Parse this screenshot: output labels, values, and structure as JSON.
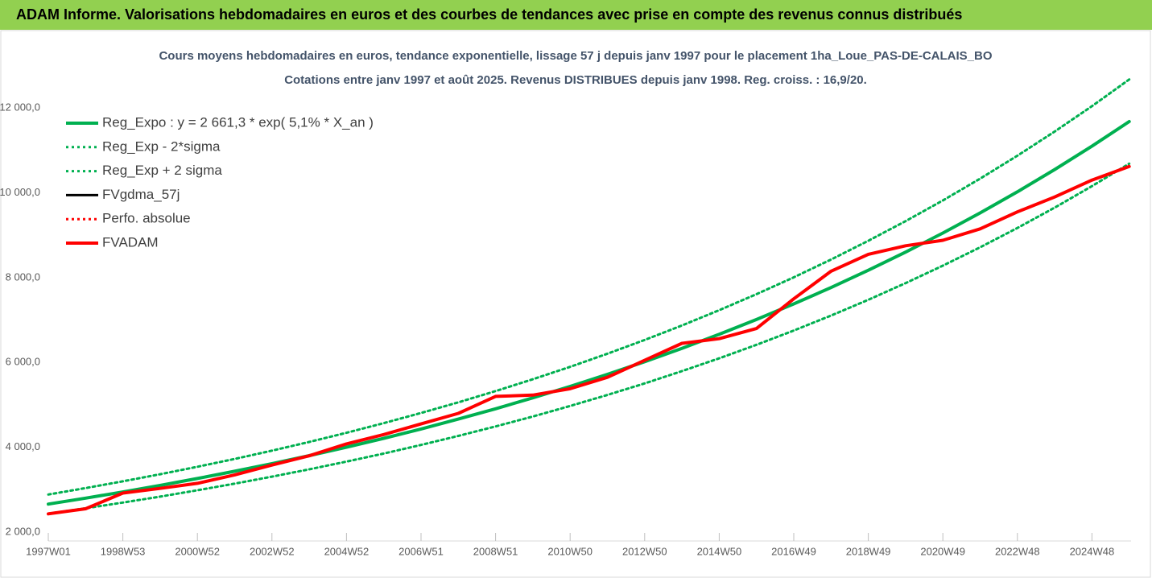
{
  "chart_data": {
    "type": "line",
    "header": "ADAM Informe. Valorisations hebdomadaires en euros et des courbes de tendances avec prise en compte des revenus connus distribués",
    "title": "Cours moyens hebdomadaires en euros, tendance exponentielle, lissage 57 j depuis janv 1997 pour le placement 1ha_Loue_PAS-DE-CALAIS_BO",
    "subtitle": "Cotations entre janv 1997 et août 2025. Revenus DISTRIBUES depuis janv 1998. Reg. croiss. : 16,9/20.",
    "categories": [
      "1997W01",
      null,
      "1998W53",
      null,
      "2000W52",
      null,
      "2002W52",
      null,
      "2004W52",
      null,
      "2006W51",
      null,
      "2008W51",
      null,
      "2010W50",
      null,
      "2012W50",
      null,
      "2014W50",
      null,
      "2016W49",
      null,
      "2018W49",
      null,
      "2020W49",
      null,
      "2022W48",
      null,
      "2024W48",
      null
    ],
    "ylim": [
      2000,
      12400
    ],
    "yticks": [
      {
        "value": 2000,
        "label": "2 000,0"
      },
      {
        "value": 4000,
        "label": "4 000,0"
      },
      {
        "value": 6000,
        "label": "6 000,0"
      },
      {
        "value": 8000,
        "label": "8 000,0"
      },
      {
        "value": 10000,
        "label": "10 000,0"
      },
      {
        "value": 12000,
        "label": "12 000,0"
      }
    ],
    "grid": false,
    "legend": "upper left",
    "series": [
      {
        "name": "Reg_Expo : y = 2 661,3 * exp( 5,1% *  X_an )",
        "color": "#00b050",
        "style": "solid",
        "values": [
          2661,
          2800,
          2947,
          3101,
          3264,
          3434,
          3614,
          3803,
          4002,
          4211,
          4432,
          4664,
          4908,
          5165,
          5435,
          5719,
          6018,
          6333,
          6665,
          7013,
          7380,
          7766,
          8173,
          8601,
          9050,
          9524,
          10022,
          10547,
          11099,
          11679
        ]
      },
      {
        "name": "Reg_Exp - 2*sigma",
        "color": "#00b050",
        "style": "dotted",
        "values": [
          2435,
          2562,
          2697,
          2837,
          2987,
          3142,
          3307,
          3480,
          3662,
          3853,
          4055,
          4268,
          4491,
          4726,
          4973,
          5233,
          5506,
          5795,
          6098,
          6417,
          6753,
          7106,
          7478,
          7870,
          8281,
          8714,
          9170,
          9651,
          10156,
          10686
        ]
      },
      {
        "name": "Reg_Exp + 2 sigma",
        "color": "#00b050",
        "style": "dotted",
        "values": [
          2887,
          3038,
          3197,
          3365,
          3541,
          3726,
          3921,
          4126,
          4342,
          4569,
          4809,
          5060,
          5325,
          5604,
          5897,
          6205,
          6530,
          6871,
          7232,
          7609,
          8007,
          8426,
          8868,
          9332,
          9819,
          10334,
          10874,
          11443,
          12042,
          12672
        ]
      },
      {
        "name": "FVgdma_57j",
        "color": "#000000",
        "style": "solid",
        "values": [
          2430,
          2550,
          2920,
          3030,
          3150,
          3350,
          3580,
          3800,
          4080,
          4300,
          4550,
          4800,
          5200,
          5230,
          5380,
          5650,
          6050,
          6450,
          6560,
          6800,
          7500,
          8150,
          8550,
          8750,
          8880,
          9150,
          9550,
          9900,
          10300,
          10620
        ]
      },
      {
        "name": "Perfo. absolue",
        "color": "#ff0000",
        "style": "dotted",
        "values": [
          2430,
          2550,
          2920,
          3030,
          3150,
          3350,
          3580,
          3800,
          4080,
          4300,
          4550,
          4800,
          5200,
          5230,
          5380,
          5650,
          6050,
          6450,
          6560,
          6800,
          7500,
          8150,
          8550,
          8750,
          8880,
          9150,
          9550,
          9900,
          10300,
          10620
        ]
      },
      {
        "name": "FVADAM",
        "color": "#ff0000",
        "style": "solid",
        "values": [
          2430,
          2550,
          2920,
          3030,
          3150,
          3350,
          3580,
          3800,
          4080,
          4300,
          4550,
          4800,
          5200,
          5230,
          5380,
          5650,
          6050,
          6450,
          6560,
          6800,
          7500,
          8150,
          8550,
          8750,
          8880,
          9150,
          9550,
          9900,
          10300,
          10620
        ]
      }
    ]
  }
}
